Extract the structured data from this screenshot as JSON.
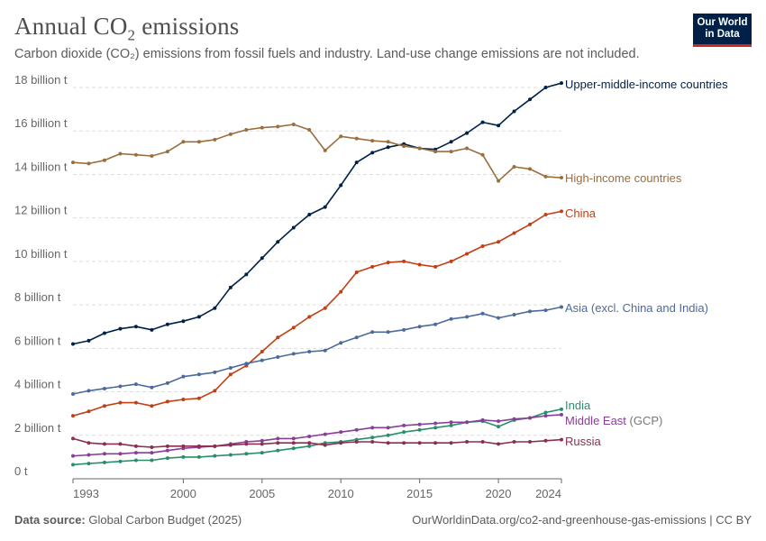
{
  "header": {
    "title_main": "Annual CO",
    "title_sub": "2",
    "title_tail": " emissions",
    "subtitle": "Carbon dioxide (CO₂) emissions from fossil fuels and industry. Land-use change emissions are not included."
  },
  "logo": {
    "line1": "Our World",
    "line2": "in Data"
  },
  "footer": {
    "source_label": "Data source:",
    "source_text": " Global Carbon Budget (2025)",
    "url_text": "OurWorldinData.org/co2-and-greenhouse-gas-emissions | CC BY"
  },
  "colors": {
    "grid": "#dddddd",
    "axis": "#666666",
    "logo_bg": "#002147",
    "logo_accent": "#ce261e"
  },
  "chart_data": {
    "type": "line",
    "title": "Annual CO₂ emissions",
    "xlim": [
      1993,
      2024
    ],
    "ylim": [
      0,
      18
    ],
    "xticks": [
      {
        "value": 1993,
        "label": "1993"
      },
      {
        "value": 2000,
        "label": "2000"
      },
      {
        "value": 2005,
        "label": "2005"
      },
      {
        "value": 2010,
        "label": "2010"
      },
      {
        "value": 2015,
        "label": "2015"
      },
      {
        "value": 2020,
        "label": "2020"
      },
      {
        "value": 2024,
        "label": "2024"
      }
    ],
    "yticks": [
      {
        "value": 0,
        "label": "0 t"
      },
      {
        "value": 2,
        "label": "2 billion t"
      },
      {
        "value": 4,
        "label": "4 billion t"
      },
      {
        "value": 6,
        "label": "6 billion t"
      },
      {
        "value": 8,
        "label": "8 billion t"
      },
      {
        "value": 10,
        "label": "10 billion t"
      },
      {
        "value": 12,
        "label": "12 billion t"
      },
      {
        "value": 14,
        "label": "14 billion t"
      },
      {
        "value": 16,
        "label": "16 billion t"
      },
      {
        "value": 18,
        "label": "18 billion t"
      }
    ],
    "grid": true,
    "legend": "inline labels at line ends",
    "x": [
      1993,
      1994,
      1995,
      1996,
      1997,
      1998,
      1999,
      2000,
      2001,
      2002,
      2003,
      2004,
      2005,
      2006,
      2007,
      2008,
      2009,
      2010,
      2011,
      2012,
      2013,
      2014,
      2015,
      2016,
      2017,
      2018,
      2019,
      2020,
      2021,
      2022,
      2023,
      2024
    ],
    "series": [
      {
        "name": "Upper-middle-income countries",
        "color": "#002147",
        "values": [
          6.2,
          6.35,
          6.7,
          6.9,
          7.0,
          6.85,
          7.1,
          7.25,
          7.45,
          7.85,
          8.8,
          9.4,
          10.15,
          10.9,
          11.55,
          12.15,
          12.5,
          13.5,
          14.55,
          15.0,
          15.25,
          15.4,
          15.2,
          15.15,
          15.5,
          15.9,
          16.4,
          16.25,
          16.9,
          17.45,
          18.0,
          18.2
        ],
        "label_parts": [
          {
            "text": "Upper-middle-income countries",
            "muted": false
          }
        ]
      },
      {
        "name": "High-income countries",
        "color": "#9a6e3e",
        "values": [
          14.55,
          14.5,
          14.65,
          14.95,
          14.9,
          14.85,
          15.05,
          15.5,
          15.5,
          15.6,
          15.85,
          16.05,
          16.15,
          16.2,
          16.3,
          16.05,
          15.1,
          15.75,
          15.65,
          15.55,
          15.5,
          15.3,
          15.2,
          15.05,
          15.05,
          15.2,
          14.9,
          13.7,
          14.35,
          14.25,
          13.9,
          13.85
        ],
        "label_parts": [
          {
            "text": "High-income countries",
            "muted": false
          }
        ]
      },
      {
        "name": "China",
        "color": "#c13f14",
        "values": [
          2.9,
          3.1,
          3.35,
          3.5,
          3.5,
          3.35,
          3.55,
          3.65,
          3.7,
          4.05,
          4.8,
          5.2,
          5.85,
          6.5,
          6.95,
          7.45,
          7.85,
          8.6,
          9.5,
          9.75,
          9.95,
          10.0,
          9.85,
          9.75,
          10.0,
          10.35,
          10.7,
          10.9,
          11.3,
          11.7,
          12.15,
          12.3
        ],
        "label_parts": [
          {
            "text": "China",
            "muted": false
          }
        ]
      },
      {
        "name": "Asia (excl. China and India)",
        "color": "#4c6a9c",
        "values": [
          3.9,
          4.05,
          4.15,
          4.25,
          4.35,
          4.2,
          4.4,
          4.7,
          4.8,
          4.9,
          5.1,
          5.3,
          5.45,
          5.6,
          5.75,
          5.85,
          5.9,
          6.25,
          6.5,
          6.75,
          6.75,
          6.85,
          7.0,
          7.1,
          7.35,
          7.45,
          7.6,
          7.4,
          7.55,
          7.7,
          7.75,
          7.9
        ],
        "label_parts": [
          {
            "text": "Asia (excl. China and India)",
            "muted": false
          }
        ]
      },
      {
        "name": "India",
        "color": "#2a8e6d",
        "values": [
          0.65,
          0.7,
          0.75,
          0.8,
          0.85,
          0.85,
          0.95,
          1.0,
          1.0,
          1.05,
          1.1,
          1.15,
          1.2,
          1.3,
          1.4,
          1.5,
          1.65,
          1.7,
          1.8,
          1.9,
          2.0,
          2.15,
          2.25,
          2.35,
          2.45,
          2.6,
          2.65,
          2.4,
          2.7,
          2.8,
          3.05,
          3.2
        ],
        "label_parts": [
          {
            "text": "India",
            "muted": false
          }
        ]
      },
      {
        "name": "Middle East (GCP)",
        "color": "#883f98",
        "values": [
          1.05,
          1.1,
          1.15,
          1.15,
          1.2,
          1.2,
          1.3,
          1.4,
          1.45,
          1.5,
          1.6,
          1.7,
          1.75,
          1.85,
          1.85,
          1.95,
          2.05,
          2.15,
          2.25,
          2.35,
          2.35,
          2.45,
          2.5,
          2.55,
          2.6,
          2.6,
          2.7,
          2.65,
          2.75,
          2.8,
          2.9,
          2.95
        ],
        "label_parts": [
          {
            "text": "Middle East",
            "muted": false
          },
          {
            "text": " (GCP)",
            "muted": true
          }
        ]
      },
      {
        "name": "Russia",
        "color": "#8c2f4e",
        "values": [
          1.85,
          1.65,
          1.6,
          1.6,
          1.5,
          1.45,
          1.5,
          1.5,
          1.5,
          1.5,
          1.55,
          1.6,
          1.6,
          1.65,
          1.65,
          1.65,
          1.55,
          1.65,
          1.7,
          1.7,
          1.65,
          1.65,
          1.65,
          1.65,
          1.65,
          1.7,
          1.7,
          1.6,
          1.7,
          1.7,
          1.75,
          1.8
        ],
        "label_parts": [
          {
            "text": "Russia",
            "muted": false
          }
        ]
      }
    ]
  }
}
